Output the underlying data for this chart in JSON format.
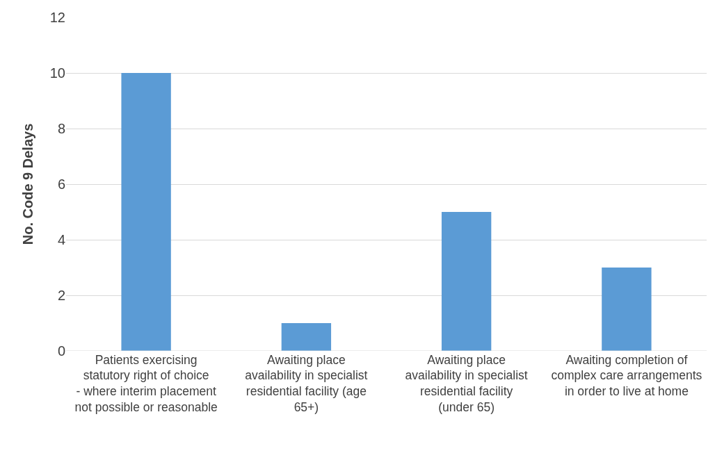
{
  "chart_data": {
    "type": "bar",
    "ylabel": "No. Code 9 Delays",
    "categories": [
      "Patients exercising statutory right of choice - where interim placement not possible or reasonable",
      "Awaiting place availability in specialist residential facility (age 65+)",
      "Awaiting place availability in specialist residential facility (under 65)",
      "Awaiting completion of complex care arrangements in order to live at home"
    ],
    "values": [
      10,
      1,
      5,
      3
    ],
    "color": "#5b9bd5",
    "ylim": [
      0,
      12
    ],
    "yticks": [
      0,
      2,
      4,
      6,
      8,
      10,
      12
    ],
    "grid": "y"
  }
}
